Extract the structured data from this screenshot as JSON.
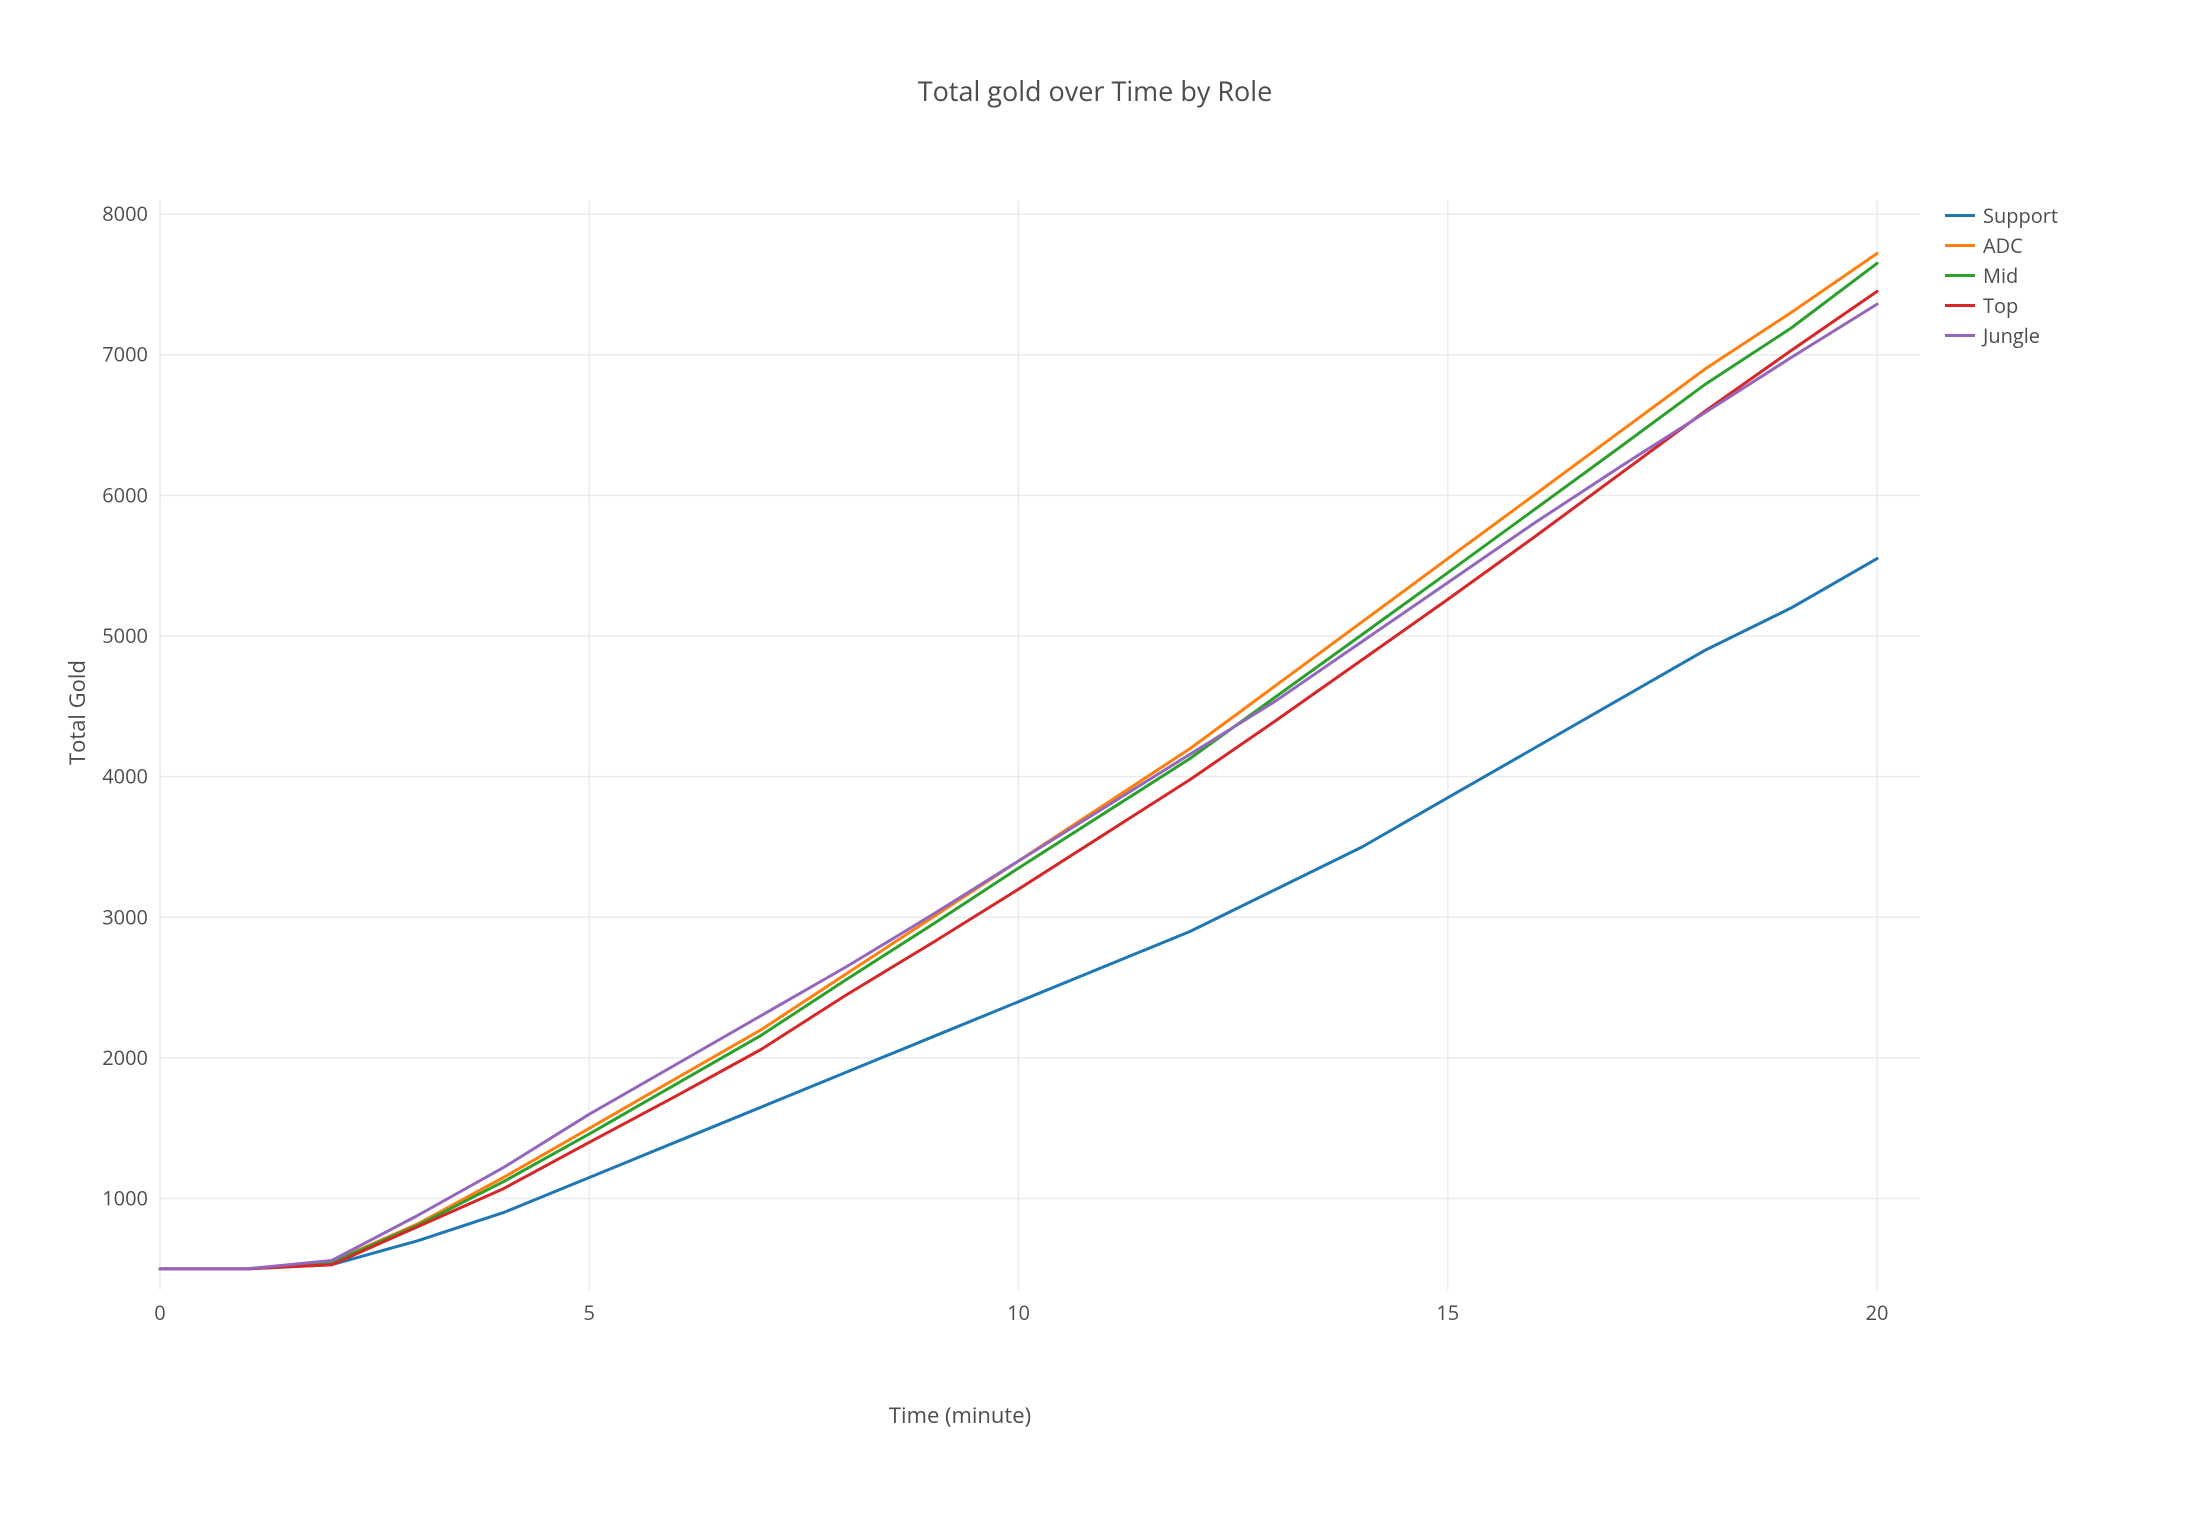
{
  "chart": {
    "type": "line",
    "title": "Total gold over Time by Role",
    "title_fontsize": 27,
    "title_color": "#4d4d4d",
    "background_color": "#ffffff",
    "grid_color": "#ebebeb",
    "font_family": "Open Sans, Helvetica Neue, Arial, sans-serif",
    "x_axis": {
      "label": "Time (minute)",
      "min": 0,
      "max": 20.5,
      "ticks": [
        0,
        5,
        10,
        15,
        20
      ],
      "tick_labels": [
        "0",
        "5",
        "10",
        "15",
        "20"
      ],
      "label_fontsize": 22,
      "tick_fontsize": 20
    },
    "y_axis": {
      "label": "Total Gold",
      "min": 350,
      "max": 8100,
      "ticks": [
        1000,
        2000,
        3000,
        4000,
        5000,
        6000,
        7000,
        8000
      ],
      "tick_labels": [
        "1000",
        "2000",
        "3000",
        "4000",
        "5000",
        "6000",
        "7000",
        "8000"
      ],
      "label_fontsize": 22,
      "tick_fontsize": 20
    },
    "line_width": 3,
    "series": [
      {
        "name": "Support",
        "color": "#1f77b4",
        "x": [
          0,
          1,
          2,
          3,
          4,
          5,
          6,
          7,
          8,
          9,
          10,
          11,
          12,
          13,
          14,
          15,
          16,
          17,
          18,
          19,
          20
        ],
        "y": [
          500,
          500,
          530,
          700,
          900,
          1150,
          1400,
          1650,
          1900,
          2150,
          2400,
          2650,
          2900,
          3200,
          3500,
          3850,
          4200,
          4550,
          4900,
          5200,
          5550
        ]
      },
      {
        "name": "ADC",
        "color": "#ff7f0e",
        "x": [
          0,
          1,
          2,
          3,
          4,
          5,
          6,
          7,
          8,
          9,
          10,
          11,
          12,
          13,
          14,
          15,
          16,
          17,
          18,
          19,
          20
        ],
        "y": [
          500,
          500,
          550,
          820,
          1150,
          1500,
          1850,
          2200,
          2600,
          3000,
          3400,
          3800,
          4200,
          4650,
          5100,
          5550,
          6000,
          6450,
          6900,
          7300,
          7720
        ]
      },
      {
        "name": "Mid",
        "color": "#2ca02c",
        "x": [
          0,
          1,
          2,
          3,
          4,
          5,
          6,
          7,
          8,
          9,
          10,
          11,
          12,
          13,
          14,
          15,
          16,
          17,
          18,
          19,
          20
        ],
        "y": [
          500,
          500,
          545,
          810,
          1120,
          1460,
          1810,
          2160,
          2560,
          2950,
          3350,
          3740,
          4130,
          4570,
          5010,
          5450,
          5895,
          6340,
          6790,
          7190,
          7650
        ]
      },
      {
        "name": "Top",
        "color": "#d62728",
        "x": [
          0,
          1,
          2,
          3,
          4,
          5,
          6,
          7,
          8,
          9,
          10,
          11,
          12,
          13,
          14,
          15,
          16,
          17,
          18,
          19,
          20
        ],
        "y": [
          500,
          500,
          530,
          800,
          1070,
          1400,
          1725,
          2060,
          2450,
          2820,
          3200,
          3590,
          3980,
          4400,
          4830,
          5260,
          5700,
          6150,
          6600,
          7030,
          7450
        ]
      },
      {
        "name": "Jungle",
        "color": "#9467bd",
        "x": [
          0,
          1,
          2,
          3,
          4,
          5,
          6,
          7,
          8,
          9,
          10,
          11,
          12,
          13,
          14,
          15,
          16,
          17,
          18,
          19,
          20
        ],
        "y": [
          500,
          500,
          560,
          880,
          1220,
          1600,
          1950,
          2300,
          2650,
          3020,
          3400,
          3780,
          4160,
          4540,
          4960,
          5380,
          5800,
          6200,
          6590,
          6980,
          7360
        ]
      }
    ],
    "legend": {
      "position": "right",
      "fontsize": 20,
      "text_color": "#4d4d4d"
    }
  }
}
